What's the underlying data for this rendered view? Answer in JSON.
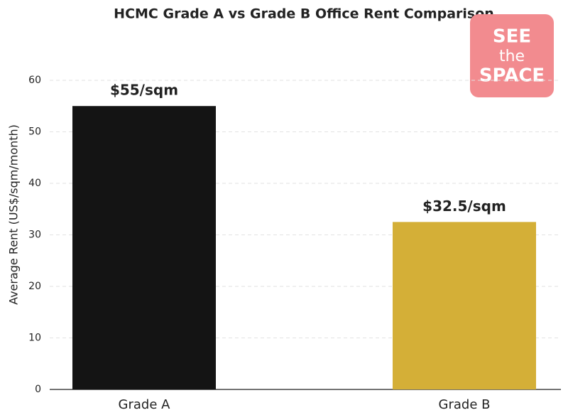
{
  "chart_data": {
    "type": "bar",
    "title": "HCMC Grade A vs Grade B Office Rent Comparison",
    "y_label": "Average Rent (US$/sqm/month)",
    "categories": [
      "Grade A",
      "Grade B"
    ],
    "values": [
      55,
      32.5
    ],
    "value_labels": [
      "$55/sqm",
      "$32.5/sqm"
    ],
    "colors": [
      "#141414",
      "#d4af37"
    ],
    "ylim": [
      0,
      63.25
    ],
    "yticks": [
      0,
      10,
      20,
      30,
      40,
      50,
      60
    ],
    "grid": true
  },
  "logo": {
    "lines": [
      "SEE",
      "the",
      "SPACE"
    ]
  }
}
